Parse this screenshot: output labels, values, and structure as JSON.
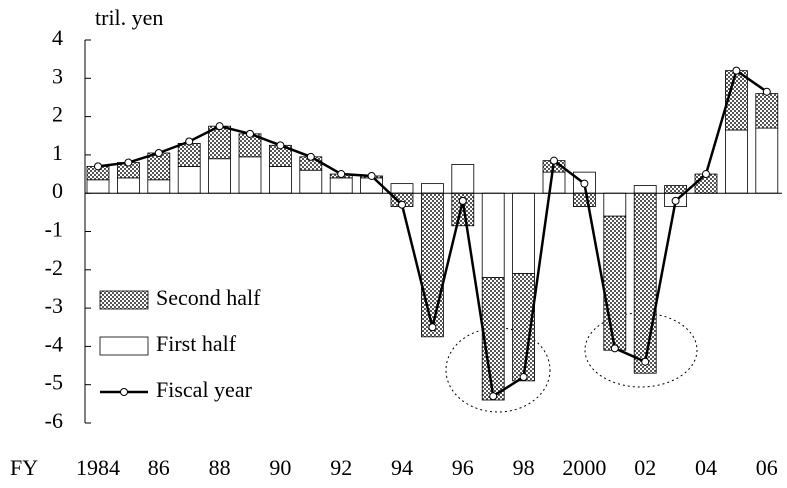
{
  "chart_data": {
    "type": "bar",
    "y_label": "tril. yen",
    "x_label": "FY",
    "categories": [
      "1984",
      null,
      "86",
      null,
      "88",
      null,
      "90",
      null,
      "92",
      null,
      "94",
      null,
      "96",
      null,
      "98",
      null,
      "2000",
      null,
      "02",
      null,
      "04",
      null,
      "06"
    ],
    "series": [
      {
        "name": "Second half",
        "color": "#555555",
        "kind": "bar",
        "values": [
          0.35,
          0.4,
          0.7,
          0.6,
          0.85,
          0.6,
          0.55,
          0.35,
          0.1,
          0.05,
          -0.35,
          -3.75,
          -0.85,
          -3.2,
          -2.8,
          0.3,
          -0.35,
          -3.5,
          -4.7,
          0.2,
          0.5,
          1.55,
          0.9
        ]
      },
      {
        "name": "First half",
        "color": "#ffffff",
        "kind": "bar",
        "values": [
          0.35,
          0.4,
          0.35,
          0.7,
          0.9,
          0.95,
          0.7,
          0.6,
          0.4,
          0.4,
          0.25,
          0.25,
          0.75,
          -2.2,
          -2.1,
          0.55,
          0.55,
          -0.6,
          0.2,
          -0.35,
          0,
          1.65,
          1.7
        ]
      },
      {
        "name": "Fiscal year",
        "color": "#000000",
        "kind": "line",
        "values": [
          0.7,
          0.8,
          1.05,
          1.35,
          1.75,
          1.55,
          1.25,
          0.95,
          0.5,
          0.45,
          -0.3,
          -3.5,
          -0.2,
          -5.3,
          -4.8,
          0.85,
          0.25,
          -4.05,
          -4.4,
          -0.2,
          0.5,
          3.2,
          2.65
        ]
      }
    ],
    "ylim": [
      -6,
      4
    ],
    "yticks": [
      -6,
      -5,
      -4,
      -3,
      -2,
      -1,
      0,
      1,
      2,
      3,
      4
    ],
    "grid": false,
    "legend": "lower left"
  }
}
